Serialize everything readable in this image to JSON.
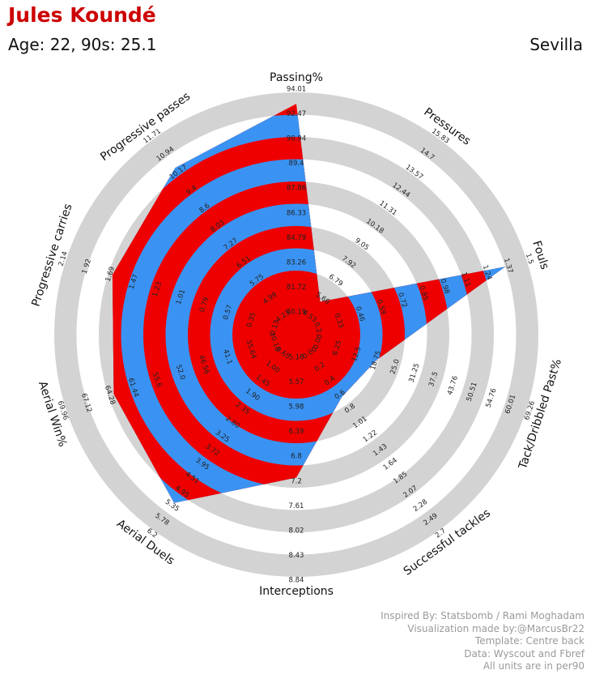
{
  "header": {
    "player_name": "Jules Koundé",
    "player_info": "Age: 22, 90s: 25.1",
    "club": "Sevilla"
  },
  "credits": [
    "Inspired By: Statsbomb / Rami Moghadam",
    "Visualization made by:@MarcusBr22",
    "Template: Centre back",
    "Data: Wyscout and Fbref",
    "All units are in per90"
  ],
  "colors": {
    "ring_gray": "#d3d3d3",
    "fill_blue": "#3a93f2",
    "fill_red": "#ee0000",
    "title_red": "#cc0000"
  },
  "chart_data": {
    "type": "radar",
    "rings": 10,
    "axes": [
      {
        "label": "Passing%",
        "ticks": [
          "80.19",
          "81.72",
          "83.26",
          "84.79",
          "86.33",
          "87.86",
          "89.4",
          "90.94",
          "92.47",
          "94.01"
        ],
        "value": 93.3
      },
      {
        "label": "Pressures",
        "ticks": [
          "4.53",
          "5.66",
          "6.79",
          "7.92",
          "9.05",
          "10.18",
          "11.31",
          "12.44",
          "13.57",
          "14.7",
          "15.83"
        ],
        "value": 5.6
      },
      {
        "label": "Fouls",
        "ticks": [
          "0.2",
          "0.33",
          "0.46",
          "0.59",
          "0.72",
          "0.85",
          "0.98",
          "1.11",
          "1.24",
          "1.37",
          "1.5"
        ],
        "value": 1.37
      },
      {
        "label": "Tack/Dribbled Past%",
        "ticks": [
          "0.00",
          "6.25",
          "12.5",
          "18.75",
          "25.0",
          "31.25",
          "37.5",
          "43.76",
          "50.51",
          "54.76",
          "60.01",
          "69.26"
        ],
        "value": 20.0
      },
      {
        "label": "Successful tackles",
        "ticks": [
          "0.00",
          "0.2",
          "0.4",
          "0.6",
          "0.8",
          "1.01",
          "1.22",
          "1.43",
          "1.64",
          "1.85",
          "2.07",
          "2.28",
          "2.49",
          "2.7"
        ],
        "value": 0.7
      },
      {
        "label": "Interceptions",
        "ticks": [
          "5.16",
          "5.57",
          "5.98",
          "6.39",
          "6.8",
          "7.2",
          "7.61",
          "8.02",
          "8.43",
          "8.84"
        ],
        "value": 7.2
      },
      {
        "label": "Aerial Duels",
        "ticks": [
          "0.65",
          "1.00",
          "1.45",
          "1.90",
          "2.35",
          "2.80",
          "3.25",
          "3.72",
          "3.95",
          "4.51",
          "4.95",
          "5.35",
          "5.78",
          "6.2"
        ],
        "value": 5.35
      },
      {
        "label": "Aerial Win%",
        "ticks": [
          "30.18",
          "35.64",
          "41.1",
          "46.56",
          "52.0",
          "55.6",
          "61.44",
          "64.28",
          "67.12",
          "69.96"
        ],
        "value": 61.0
      },
      {
        "label": "Progressive carries",
        "ticks": [
          "0.13",
          "0.35",
          "0.57",
          "0.79",
          "1.01",
          "1.23",
          "1.47",
          "1.69",
          "1.92",
          "2.14"
        ],
        "value": 1.7
      },
      {
        "label": "Progressive passes",
        "ticks": [
          "4.23",
          "4.99",
          "5.75",
          "6.51",
          "7.27",
          "8.03",
          "8.6",
          "9.4",
          "10.17",
          "10.94",
          "11.71"
        ],
        "value": 10.5
      }
    ]
  }
}
